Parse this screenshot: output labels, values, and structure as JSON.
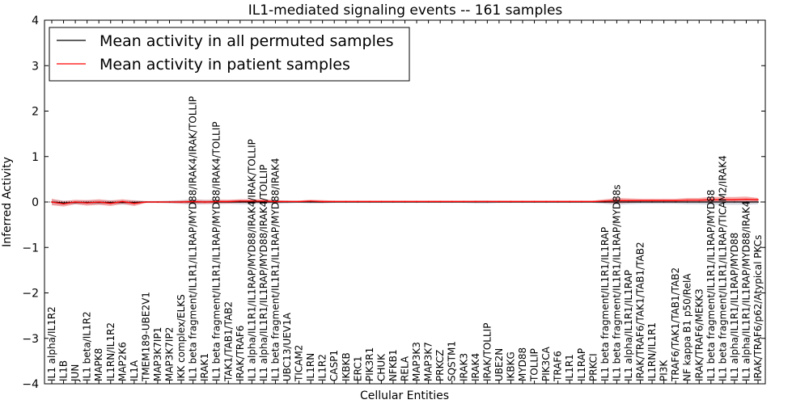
{
  "chart_data": {
    "type": "line",
    "title": "IL1-mediated signaling events -- 161 samples",
    "xlabel": "Cellular Entities",
    "ylabel": "Inferred Activity",
    "ylim": [
      -4,
      4
    ],
    "yticks": [
      4,
      3,
      2,
      1,
      0,
      -1,
      -2,
      -3,
      -4
    ],
    "ytick_labels": [
      "4",
      "3",
      "2",
      "1",
      "0",
      "−1",
      "−2",
      "−3",
      "−4"
    ],
    "categories": [
      "IL1 alpha/IL1R2",
      "IL1B",
      "JUN",
      "IL1 beta/IL1R2",
      "MAPK8",
      "IL1RN/IL1R2",
      "MAP2K6",
      "IL1A",
      "TMEM189-UBE2V1",
      "MAP3K7IP1",
      "MAP3K7IP2",
      "IKK complex/ELKS",
      "IL1 beta fragment/IL1R1/IL1RAP/MYD88/IRAK4/IRAK/TOLLIP",
      "IRAK1",
      "IL1 beta fragment/IL1R1/IL1RAP/MYD88/IRAK4/TOLLIP",
      "TAK1/TAB1/TAB2",
      "IRAK/TRAF6",
      "IL1 alpha/IL1R1/IL1RAP/MYD88/IRAK4/IRAK/TOLLIP",
      "IL1 alpha/IL1R1/IL1RAP/MYD88/IRAK4/TOLLIP",
      "IL1 beta fragment/IL1R1/IL1RAP/MYD88/IRAK4",
      "UBC13/UEV1A",
      "TICAM2",
      "IL1RN",
      "IL1R2",
      "CASP1",
      "IKBKB",
      "ERC1",
      "PIK3R1",
      "CHUK",
      "NFKB1",
      "RELA",
      "MAP3K3",
      "MAP3K7",
      "PRKCZ",
      "SQSTM1",
      "IRAK3",
      "IRAK4",
      "IRAK/TOLLIP",
      "UBE2N",
      "IKBKG",
      "MYD88",
      "TOLLIP",
      "PIK3CA",
      "TRAF6",
      "IL1R1",
      "IL1RAP",
      "PRKCI",
      "IL1 beta fragment/IL1R1/IL1RAP",
      "IL1 beta fragment/IL1R1/IL1RAP/MYD88s",
      "IL1 alpha/IL1R1/IL1RAP",
      "IRAK/TRAF6/TAK1/TAB1/TAB2",
      "IL1RN/IL1R1",
      "PI3K",
      "TRAF6/TAK1/TAB1/TAB2",
      "NF kappa B1 p50/RelA",
      "IRAK/TRAF6/MEKK3",
      "IL1 beta fragment/IL1R1/IL1RAP/MYD88",
      "IL1 beta fragment/IL1R1/IL1RAP/TICAM2/IRAK4",
      "IL1 alpha/IL1R1/IL1RAP/MYD88",
      "IL1 alpha/IL1R1/IL1RAP/MYD88/IRAK4",
      "IRAK/TRAF6/p62/Atypical PKCs"
    ],
    "series": [
      {
        "name": "Mean activity in all permuted samples",
        "color": "#000000",
        "values": [
          0,
          -0.02,
          -0.01,
          -0.01,
          -0.01,
          -0.01,
          -0.01,
          -0.01,
          0,
          0,
          0,
          0,
          0,
          0,
          0,
          0,
          0,
          0,
          0,
          0,
          0,
          0,
          0,
          0,
          0,
          0,
          0,
          0,
          0,
          0,
          0,
          0,
          0,
          0,
          0,
          0,
          0,
          0,
          0,
          0,
          0,
          0,
          0,
          0,
          0,
          0,
          0,
          0,
          0,
          0,
          0,
          0,
          0,
          0,
          0,
          0,
          0,
          0,
          0,
          0,
          0
        ],
        "band": [
          0.06,
          0.05,
          0.04,
          0.05,
          0.05,
          0.05,
          0.05,
          0.05,
          0.02,
          0.02,
          0.03,
          0.04,
          0.06,
          0.05,
          0.05,
          0.04,
          0.05,
          0.05,
          0.04,
          0.04,
          0.03,
          0.02,
          0.03,
          0.03,
          0.02,
          0.02,
          0.02,
          0.02,
          0.02,
          0.02,
          0.02,
          0.02,
          0.02,
          0.02,
          0.02,
          0.02,
          0.03,
          0.03,
          0.02,
          0.02,
          0.02,
          0.02,
          0.02,
          0.02,
          0.02,
          0.02,
          0.02,
          0.04,
          0.06,
          0.05,
          0.04,
          0.04,
          0.04,
          0.04,
          0.05,
          0.05,
          0.06,
          0.06,
          0.06,
          0.06,
          0.05
        ]
      },
      {
        "name": "Mean activity in patient samples",
        "color": "#ff0000",
        "values": [
          0,
          -0.04,
          0,
          -0.02,
          0,
          -0.03,
          0.01,
          -0.03,
          0,
          0,
          0,
          0,
          0.01,
          0,
          0.01,
          0.01,
          0.02,
          0.02,
          0.02,
          0.01,
          0.01,
          0.01,
          0.02,
          0.01,
          0.01,
          0.01,
          0.01,
          0.01,
          0.01,
          0.01,
          0.01,
          0.01,
          0.01,
          0.01,
          0.01,
          0.01,
          0.01,
          0.01,
          0.01,
          0.01,
          0.01,
          0.01,
          0.01,
          0.01,
          0.01,
          0.01,
          0.01,
          0.02,
          0.03,
          0.03,
          0.03,
          0.03,
          0.03,
          0.03,
          0.04,
          0.04,
          0.05,
          0.05,
          0.05,
          0.06,
          0.05
        ],
        "band": [
          0.07,
          0.06,
          0.05,
          0.06,
          0.06,
          0.06,
          0.05,
          0.06,
          0.02,
          0.02,
          0.02,
          0.03,
          0.04,
          0.04,
          0.04,
          0.04,
          0.04,
          0.04,
          0.04,
          0.03,
          0.02,
          0.02,
          0.03,
          0.03,
          0.02,
          0.02,
          0.02,
          0.02,
          0.02,
          0.02,
          0.02,
          0.02,
          0.02,
          0.02,
          0.02,
          0.02,
          0.02,
          0.02,
          0.02,
          0.02,
          0.02,
          0.02,
          0.02,
          0.02,
          0.02,
          0.02,
          0.02,
          0.04,
          0.06,
          0.05,
          0.04,
          0.04,
          0.04,
          0.04,
          0.05,
          0.05,
          0.06,
          0.06,
          0.06,
          0.06,
          0.04
        ]
      }
    ],
    "reference_line": 0,
    "grid": false,
    "legend_position": "top-left"
  }
}
